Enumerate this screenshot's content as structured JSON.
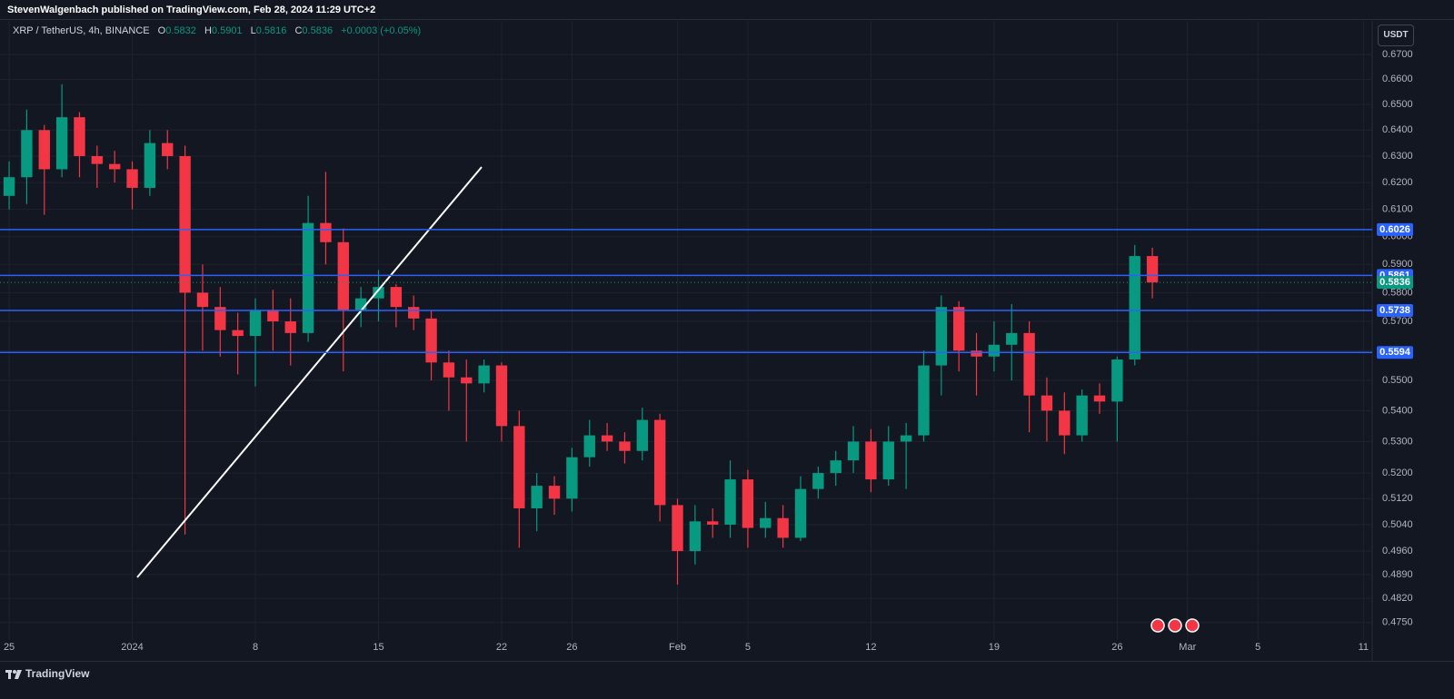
{
  "header": "StevenWalgenbach published on TradingView.com, Feb 28, 2024 11:29 UTC+2",
  "footer": "TradingView",
  "chart_data": {
    "type": "candlestick",
    "symbol": "XRP / TetherUS, 4h, BINANCE",
    "legend": {
      "labels": [
        "O",
        "H",
        "L",
        "C"
      ],
      "values": [
        0.5832,
        0.5901,
        0.5816,
        0.5836
      ],
      "change": "+0.0003 (+0.05%)"
    },
    "currency": "USDT",
    "up_color": "#089981",
    "down_color": "#f23645",
    "x": [
      0,
      1,
      2,
      3,
      4,
      5,
      6,
      7,
      8,
      9,
      10,
      11,
      12,
      13,
      14,
      15,
      16,
      17,
      18,
      19,
      20,
      21,
      22,
      23,
      24,
      25,
      26,
      27,
      28,
      29,
      30,
      31,
      32,
      33,
      34,
      35,
      36,
      37,
      38,
      39,
      40,
      41,
      42,
      43,
      44,
      45,
      46,
      47,
      48,
      49,
      50,
      51,
      52,
      53,
      54,
      55,
      56,
      57,
      58,
      59,
      60,
      61,
      62,
      63,
      64,
      65
    ],
    "open": [
      0.615,
      0.622,
      0.64,
      0.625,
      0.645,
      0.63,
      0.627,
      0.625,
      0.618,
      0.635,
      0.63,
      0.58,
      0.575,
      0.567,
      0.565,
      0.574,
      0.57,
      0.566,
      0.605,
      0.598,
      0.574,
      0.578,
      0.582,
      0.575,
      0.571,
      0.556,
      0.551,
      0.549,
      0.555,
      0.535,
      0.509,
      0.516,
      0.512,
      0.525,
      0.532,
      0.53,
      0.527,
      0.537,
      0.51,
      0.496,
      0.505,
      0.504,
      0.518,
      0.503,
      0.506,
      0.5,
      0.515,
      0.52,
      0.524,
      0.53,
      0.518,
      0.53,
      0.532,
      0.555,
      0.575,
      0.56,
      0.558,
      0.562,
      0.566,
      0.545,
      0.54,
      0.532,
      0.545,
      0.543,
      0.557,
      0.593
    ],
    "high": [
      0.628,
      0.648,
      0.642,
      0.658,
      0.647,
      0.634,
      0.632,
      0.628,
      0.64,
      0.64,
      0.634,
      0.59,
      0.582,
      0.573,
      0.578,
      0.581,
      0.578,
      0.615,
      0.624,
      0.603,
      0.582,
      0.588,
      0.583,
      0.579,
      0.574,
      0.56,
      0.557,
      0.557,
      0.556,
      0.54,
      0.52,
      0.519,
      0.528,
      0.537,
      0.536,
      0.533,
      0.541,
      0.539,
      0.512,
      0.51,
      0.509,
      0.524,
      0.521,
      0.511,
      0.51,
      0.519,
      0.522,
      0.527,
      0.535,
      0.534,
      0.535,
      0.536,
      0.56,
      0.579,
      0.577,
      0.566,
      0.57,
      0.576,
      0.57,
      0.551,
      0.546,
      0.547,
      0.549,
      0.558,
      0.597,
      0.596
    ],
    "low": [
      0.61,
      0.612,
      0.608,
      0.622,
      0.622,
      0.618,
      0.62,
      0.61,
      0.615,
      0.625,
      0.501,
      0.56,
      0.558,
      0.552,
      0.548,
      0.56,
      0.555,
      0.563,
      0.59,
      0.553,
      0.568,
      0.57,
      0.568,
      0.567,
      0.55,
      0.54,
      0.53,
      0.546,
      0.53,
      0.497,
      0.502,
      0.507,
      0.508,
      0.522,
      0.527,
      0.523,
      0.524,
      0.505,
      0.486,
      0.492,
      0.5,
      0.5,
      0.497,
      0.5,
      0.497,
      0.499,
      0.512,
      0.516,
      0.52,
      0.514,
      0.516,
      0.515,
      0.53,
      0.545,
      0.553,
      0.545,
      0.553,
      0.55,
      0.533,
      0.53,
      0.526,
      0.53,
      0.539,
      0.53,
      0.555,
      0.578
    ],
    "close": [
      0.622,
      0.64,
      0.625,
      0.645,
      0.63,
      0.627,
      0.625,
      0.618,
      0.635,
      0.63,
      0.58,
      0.575,
      0.567,
      0.565,
      0.574,
      0.57,
      0.566,
      0.605,
      0.598,
      0.574,
      0.578,
      0.582,
      0.575,
      0.571,
      0.556,
      0.551,
      0.549,
      0.555,
      0.535,
      0.509,
      0.516,
      0.512,
      0.525,
      0.532,
      0.53,
      0.527,
      0.537,
      0.51,
      0.496,
      0.505,
      0.504,
      0.518,
      0.503,
      0.506,
      0.5,
      0.515,
      0.52,
      0.524,
      0.53,
      0.518,
      0.53,
      0.532,
      0.555,
      0.575,
      0.56,
      0.558,
      0.562,
      0.566,
      0.545,
      0.54,
      0.532,
      0.545,
      0.543,
      0.557,
      0.593,
      0.5836
    ],
    "xlim": [
      -0.52,
      77.5
    ],
    "xticks": [
      {
        "value": 0,
        "label": "25"
      },
      {
        "value": 7,
        "label": "2024"
      },
      {
        "value": 14,
        "label": "8"
      },
      {
        "value": 21,
        "label": "15"
      },
      {
        "value": 28,
        "label": "22"
      },
      {
        "value": 32,
        "label": "26"
      },
      {
        "value": 38,
        "label": "Feb"
      },
      {
        "value": 42,
        "label": "5"
      },
      {
        "value": 49,
        "label": "12"
      },
      {
        "value": 56,
        "label": "19"
      },
      {
        "value": 63,
        "label": "26"
      },
      {
        "value": 67,
        "label": "Mar"
      },
      {
        "value": 71,
        "label": "5"
      },
      {
        "value": 77,
        "label": "11"
      }
    ],
    "ylim": [
      0.47,
      0.683
    ],
    "log_scale": true,
    "yticks": [
      {
        "value": 0.67,
        "label": "0.6700"
      },
      {
        "value": 0.66,
        "label": "0.6600"
      },
      {
        "value": 0.65,
        "label": "0.6500"
      },
      {
        "value": 0.64,
        "label": "0.6400"
      },
      {
        "value": 0.63,
        "label": "0.6300"
      },
      {
        "value": 0.62,
        "label": "0.6200"
      },
      {
        "value": 0.61,
        "label": "0.6100"
      },
      {
        "value": 0.6,
        "label": "0.6000"
      },
      {
        "value": 0.59,
        "label": "0.5900"
      },
      {
        "value": 0.58,
        "label": "0.5800"
      },
      {
        "value": 0.57,
        "label": "0.5700"
      },
      {
        "value": 0.56,
        "label": "0.5600"
      },
      {
        "value": 0.55,
        "label": "0.5500"
      },
      {
        "value": 0.54,
        "label": "0.5400"
      },
      {
        "value": 0.53,
        "label": "0.5300"
      },
      {
        "value": 0.52,
        "label": "0.5200"
      },
      {
        "value": 0.512,
        "label": "0.5120"
      },
      {
        "value": 0.504,
        "label": "0.5040"
      },
      {
        "value": 0.496,
        "label": "0.4960"
      },
      {
        "value": 0.489,
        "label": "0.4890"
      },
      {
        "value": 0.482,
        "label": "0.4820"
      },
      {
        "value": 0.475,
        "label": "0.4750"
      }
    ],
    "grid": true,
    "levels": {
      "values": [
        0.6026,
        0.5861,
        0.5738,
        0.5594
      ],
      "color": "#2962ff"
    },
    "last_price_color": "#089981"
  }
}
